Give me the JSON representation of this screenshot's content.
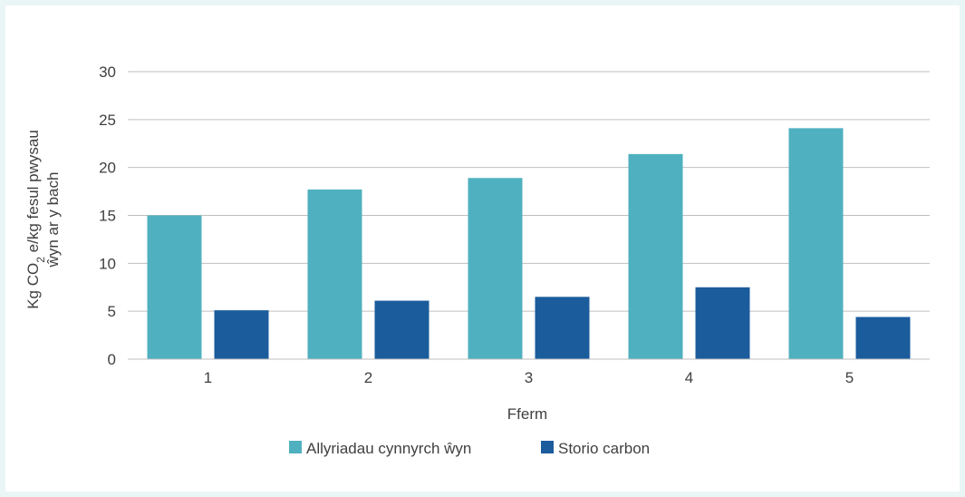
{
  "chart_data": {
    "type": "bar",
    "categories": [
      "1",
      "2",
      "3",
      "4",
      "5"
    ],
    "series": [
      {
        "name": "Allyriadau cynnyrch ŵyn",
        "values": [
          15,
          17.7,
          18.9,
          21.4,
          24.1
        ],
        "color": "#4fb0bf"
      },
      {
        "name": "Storio carbon",
        "values": [
          5.1,
          6.1,
          6.5,
          7.5,
          4.4
        ],
        "color": "#1b5c9c"
      }
    ],
    "title": "",
    "xlabel": "Fferm",
    "ylabel_line1_prefix": "Kg CO",
    "ylabel_line1_sub": "2",
    "ylabel_line1_suffix": " e/kg fesul pwysau",
    "ylabel_line2": "ŵyn ar y bach",
    "ylim": [
      0,
      30
    ],
    "yticks": [
      0,
      5,
      10,
      15,
      20,
      25,
      30
    ],
    "grid": true,
    "legend_position": "bottom"
  },
  "colors": {
    "gridline": "#bfbfbf",
    "axis": "#bfbfbf",
    "text": "#404040"
  }
}
